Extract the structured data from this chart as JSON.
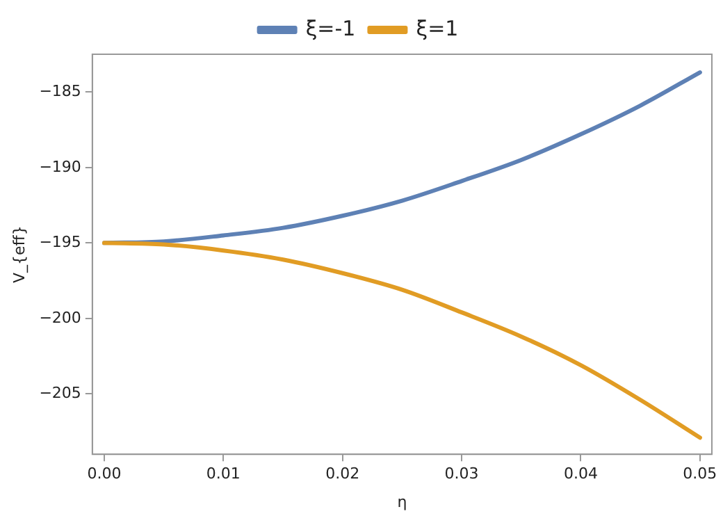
{
  "chart_data": {
    "type": "line",
    "xlabel": "η",
    "ylabel": "V_{eff}",
    "xlim": [
      -0.001,
      0.051
    ],
    "xticks": [
      {
        "value": 0,
        "label": "0.00"
      },
      {
        "value": 0.01,
        "label": "0.01"
      },
      {
        "value": 0.02,
        "label": "0.02"
      },
      {
        "value": 0.03,
        "label": "0.03"
      },
      {
        "value": 0.04,
        "label": "0.04"
      },
      {
        "value": 0.05,
        "label": "0.05"
      }
    ],
    "ylim": [
      -209,
      -182.5
    ],
    "yticks": [
      -205,
      -200,
      -195,
      -190,
      -185
    ],
    "grid": false,
    "legend": "top",
    "marker": "none",
    "line_style": "solid",
    "x": [
      0,
      0.005,
      0.01,
      0.015,
      0.02,
      0.025,
      0.03,
      0.035,
      0.04,
      0.045,
      0.05
    ],
    "series": [
      {
        "name": "ξ=-1",
        "color": "#5e81b5",
        "values": [
          -195,
          -194.9,
          -194.5,
          -194.0,
          -193.2,
          -192.2,
          -190.9,
          -189.5,
          -187.8,
          -185.9,
          -183.7
        ]
      },
      {
        "name": "ξ=1",
        "color": "#e19c24",
        "values": [
          -195,
          -195.1,
          -195.5,
          -196.1,
          -197.0,
          -198.1,
          -199.6,
          -201.2,
          -203.1,
          -205.4,
          -207.9
        ]
      }
    ]
  }
}
